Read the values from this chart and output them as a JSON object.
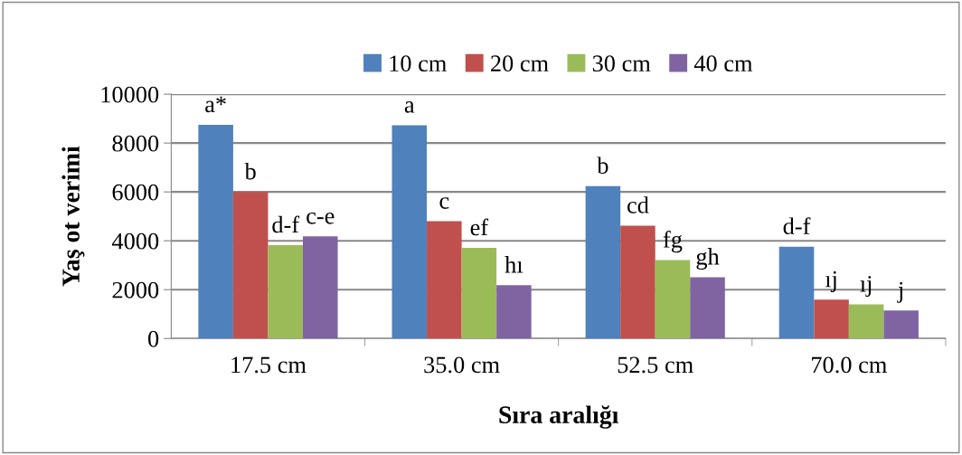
{
  "chart_data": {
    "type": "bar",
    "xlabel": "Sıra aralığı",
    "ylabel": "Yaş ot verimi",
    "categories": [
      "17.5 cm",
      "35.0 cm",
      "52.5 cm",
      "70.0 cm"
    ],
    "series": [
      {
        "name": "10 cm",
        "color": "#4f81bd",
        "values": [
          8750,
          8730,
          6240,
          3760
        ],
        "value_labels": [
          "a*",
          "a",
          "b",
          "d-f"
        ]
      },
      {
        "name": "20 cm",
        "color": "#c0504d",
        "values": [
          6000,
          4800,
          4620,
          1590
        ],
        "value_labels": [
          "b",
          "c",
          "cd",
          "ıj"
        ]
      },
      {
        "name": "30 cm",
        "color": "#9bbb59",
        "values": [
          3820,
          3710,
          3210,
          1400
        ],
        "value_labels": [
          "d-f",
          "ef",
          "fg",
          "ıj"
        ]
      },
      {
        "name": "40 cm",
        "color": "#8064a2",
        "values": [
          4180,
          2180,
          2510,
          1150
        ],
        "value_labels": [
          "c-e",
          "hı",
          "gh",
          "j"
        ]
      }
    ],
    "ylim": [
      0,
      10000
    ],
    "yticks": [
      0,
      2000,
      4000,
      6000,
      8000,
      10000
    ],
    "grid": "y",
    "legend": "top"
  }
}
